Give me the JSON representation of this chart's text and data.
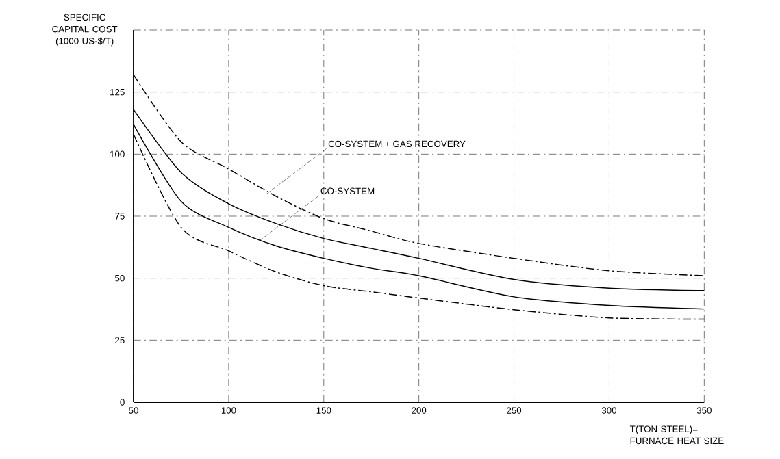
{
  "chart_data": {
    "type": "line",
    "xlabel": "T(TON STEEL)= FURNACE HEAT SIZE",
    "ylabel": "SPECIFIC CAPITAL COST (1000 US-$/T)",
    "x": [
      50,
      75,
      100,
      125,
      150,
      175,
      200,
      250,
      300,
      350
    ],
    "series": [
      {
        "color": "#000000",
        "line_style": "dashed",
        "values": [
          132,
          105,
          94,
          83,
          74,
          69,
          64,
          58,
          53,
          51
        ]
      },
      {
        "color": "#000000",
        "line_style": "solid",
        "values": [
          118,
          92.6,
          80,
          72,
          66,
          62,
          58,
          49.5,
          46,
          45
        ]
      },
      {
        "color": "#000000",
        "line_style": "solid",
        "values": [
          112,
          81,
          70.5,
          63,
          58,
          54,
          51,
          42.5,
          39,
          37.6
        ]
      },
      {
        "color": "#000000",
        "line_style": "dashed",
        "values": [
          108,
          70.5,
          61,
          52.5,
          47,
          44.5,
          42,
          37.3,
          34,
          33.5
        ]
      }
    ],
    "xlim": [
      50,
      350
    ],
    "ylim": [
      0,
      150
    ],
    "xticks": [
      50,
      100,
      150,
      200,
      250,
      300,
      350
    ],
    "yticks": [
      0,
      25,
      50,
      75,
      100,
      125,
      {
        "value": 150,
        "label": null
      }
    ],
    "grid": true,
    "annotations": [
      {
        "text": "CO-SYSTEM + GAS RECOVERY",
        "x": 120,
        "y": 84
      },
      {
        "text": "CO-SYSTEM",
        "x": 116,
        "y": 65
      }
    ]
  }
}
